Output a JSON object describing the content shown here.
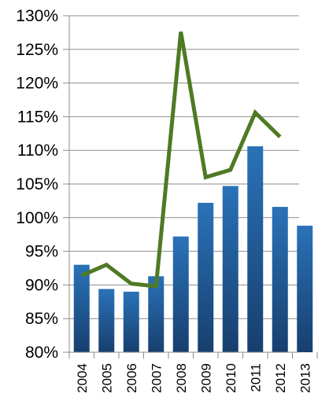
{
  "chart_data": {
    "type": "bar",
    "categories": [
      "2004",
      "2005",
      "2006",
      "2007",
      "2008",
      "2009",
      "2010",
      "2011",
      "2012",
      "2013"
    ],
    "series": [
      {
        "type": "bar",
        "values": [
          93,
          89.4,
          89,
          91.3,
          97.2,
          102.2,
          104.7,
          110.6,
          101.6,
          98.8
        ],
        "color": "#1f5fa0"
      },
      {
        "type": "line",
        "values": [
          91.4,
          93,
          90.2,
          89.8,
          127.6,
          106,
          107.1,
          115.6,
          112,
          null
        ],
        "color": "#4e7a24"
      }
    ],
    "y_ticks": [
      "80%",
      "85%",
      "90%",
      "95%",
      "100%",
      "105%",
      "110%",
      "115%",
      "120%",
      "125%",
      "130%"
    ],
    "ylim": [
      80,
      130
    ],
    "grid": true,
    "legend": "none",
    "title": "",
    "xlabel": "",
    "ylabel": ""
  }
}
